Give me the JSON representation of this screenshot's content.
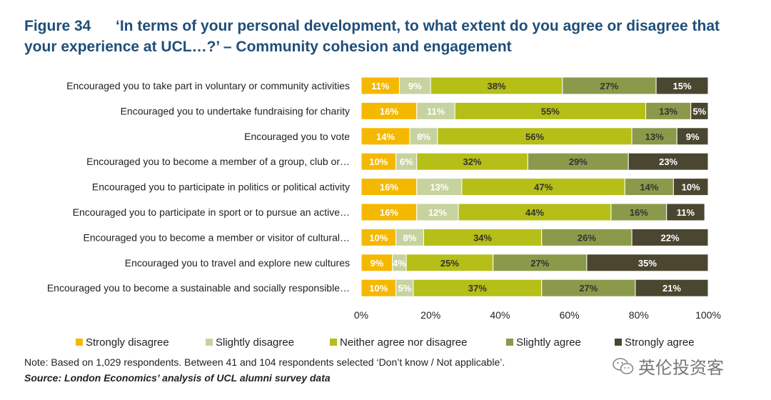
{
  "figure": {
    "label": "Figure 34",
    "title_line1": "‘In terms of your personal development, to what extent do you agree or disagree that",
    "title_line2": "your experience at UCL…?’ – Community cohesion and engagement"
  },
  "note": "Note: Based on 1,029 respondents. Between 41 and 104 respondents selected ‘Don’t know / Not applicable’.",
  "source": "Source: London Economics’ analysis of UCL alumni survey data",
  "watermark": "英伦投资客",
  "chart_data": {
    "type": "bar",
    "orientation": "horizontal",
    "stacked": true,
    "percent": true,
    "xlim": [
      0,
      100
    ],
    "xticks": [
      "0%",
      "20%",
      "40%",
      "60%",
      "80%",
      "100%"
    ],
    "grid": false,
    "legend_position": "bottom",
    "categories": [
      "Encouraged you to take part in voluntary or community activities",
      "Encouraged you to undertake fundraising for charity",
      "Encouraged you to vote",
      "Encouraged you to become a member of a group, club or…",
      "Encouraged you to participate in politics or political activity",
      "Encouraged you to participate in sport or to pursue an active…",
      "Encouraged you to become a member or visitor of cultural…",
      "Encouraged you to travel and explore new cultures",
      "Encouraged you to become a sustainable and socially responsible…"
    ],
    "series": [
      {
        "name": "Strongly disagree",
        "color": "#f5b800",
        "label_color": "#ffffff",
        "values": [
          11,
          16,
          14,
          10,
          16,
          16,
          10,
          9,
          10
        ]
      },
      {
        "name": "Slightly disagree",
        "color": "#c6d39f",
        "label_color": "#ffffff",
        "values": [
          9,
          11,
          8,
          6,
          13,
          12,
          8,
          4,
          5
        ]
      },
      {
        "name": "Neither agree nor disagree",
        "color": "#b5bf17",
        "label_color": "#333333",
        "values": [
          38,
          55,
          56,
          32,
          47,
          44,
          34,
          25,
          37
        ]
      },
      {
        "name": "Slightly agree",
        "color": "#8a9a4a",
        "label_color": "#333333",
        "values": [
          27,
          13,
          13,
          29,
          14,
          16,
          26,
          27,
          27
        ]
      },
      {
        "name": "Strongly agree",
        "color": "#4b4630",
        "label_color": "#ffffff",
        "values": [
          15,
          5,
          9,
          23,
          10,
          11,
          22,
          35,
          21
        ]
      }
    ]
  }
}
